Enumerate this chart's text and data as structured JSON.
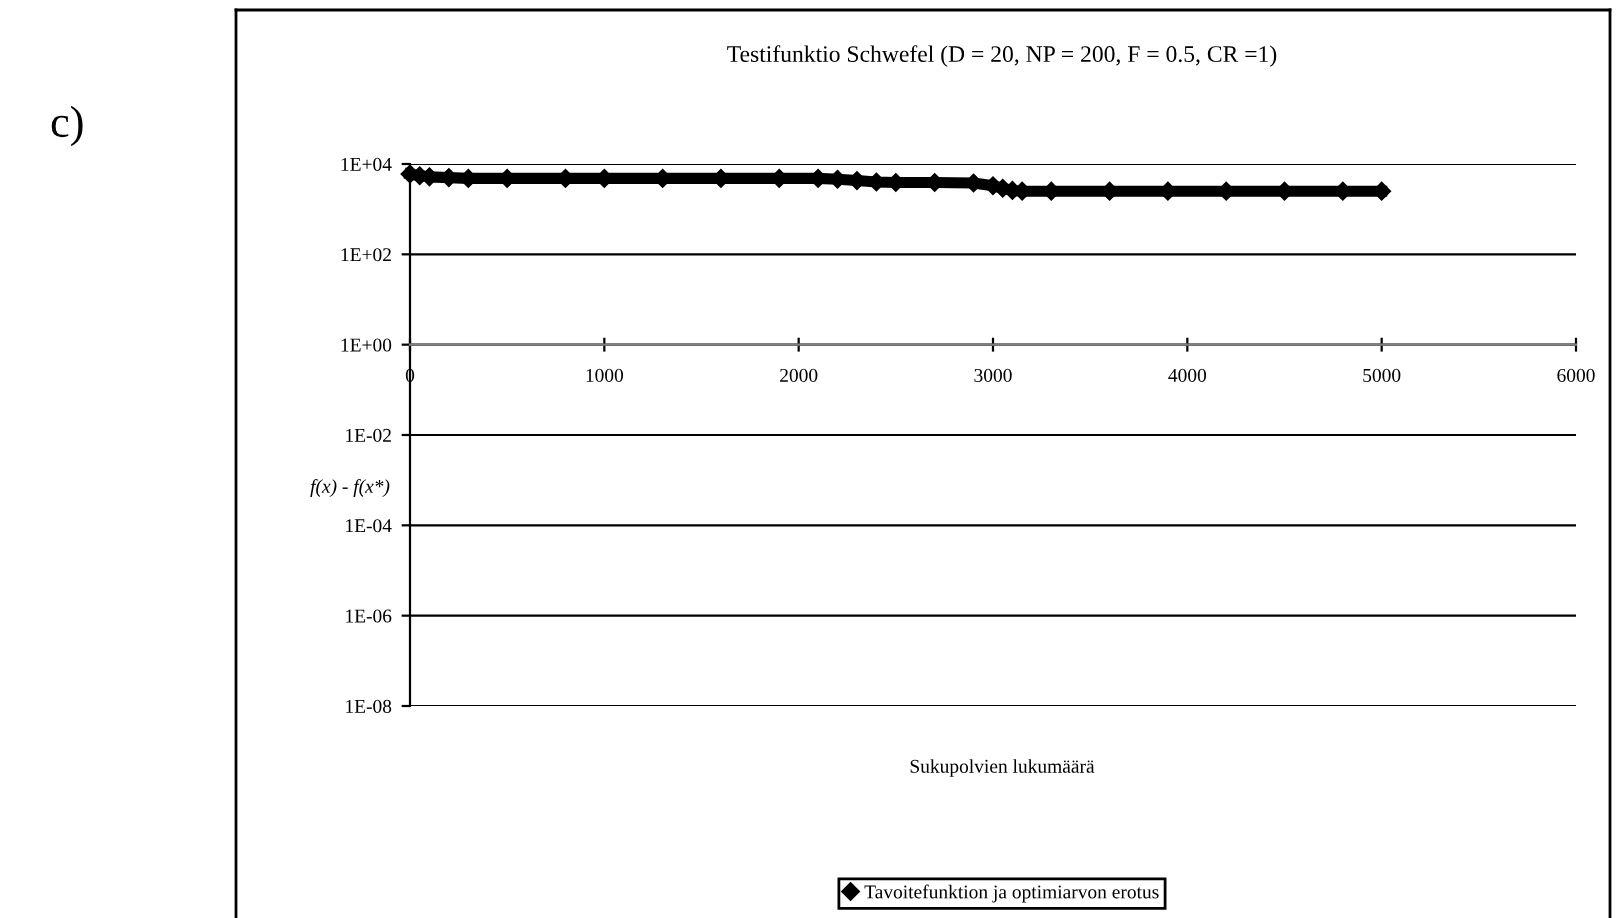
{
  "chart_data": {
    "type": "line",
    "title": "Testifunktio Schwefel (D = 20, NP = 200, F = 0.5, CR =1)",
    "xlabel": "Sukupolvien lukumäärä",
    "ylabel": "f(x) - f(x*)",
    "annotations": [
      "c)"
    ],
    "series": [
      {
        "name": "Tavoitefunktion ja optimiarvon erotus",
        "color": "#000000",
        "x": [
          0,
          50,
          100,
          200,
          300,
          500,
          800,
          1000,
          1300,
          1600,
          1900,
          2100,
          2200,
          2300,
          2400,
          2500,
          2700,
          2900,
          3000,
          3050,
          3100,
          3150,
          3300,
          3600,
          3900,
          4200,
          4500,
          4800,
          5000
        ],
        "values": [
          6000,
          5500,
          5200,
          5000,
          4800,
          4800,
          4800,
          4800,
          4800,
          4800,
          4800,
          4800,
          4600,
          4300,
          4000,
          3900,
          3900,
          3800,
          3300,
          2900,
          2600,
          2500,
          2500,
          2500,
          2500,
          2500,
          2500,
          2500,
          2500
        ]
      }
    ],
    "log": "y",
    "xlim": [
      0,
      6000
    ],
    "xticks": [
      0,
      1000,
      2000,
      3000,
      4000,
      5000,
      6000
    ],
    "ylim": [
      1e-08,
      10000
    ],
    "yticks": [
      {
        "value": 1e-08,
        "label": "1E-08"
      },
      {
        "value": 1e-06,
        "label": "1E-06"
      },
      {
        "value": 0.0001,
        "label": "1E-04"
      },
      {
        "value": 0.01,
        "label": "1E-02"
      },
      {
        "value": 1,
        "label": "1E+00"
      },
      {
        "value": 100,
        "label": "1E+02"
      },
      {
        "value": 10000,
        "label": "1E+04"
      }
    ],
    "grid": "y",
    "legend": "bottom",
    "marker": "diamond",
    "line_style": "solid"
  }
}
